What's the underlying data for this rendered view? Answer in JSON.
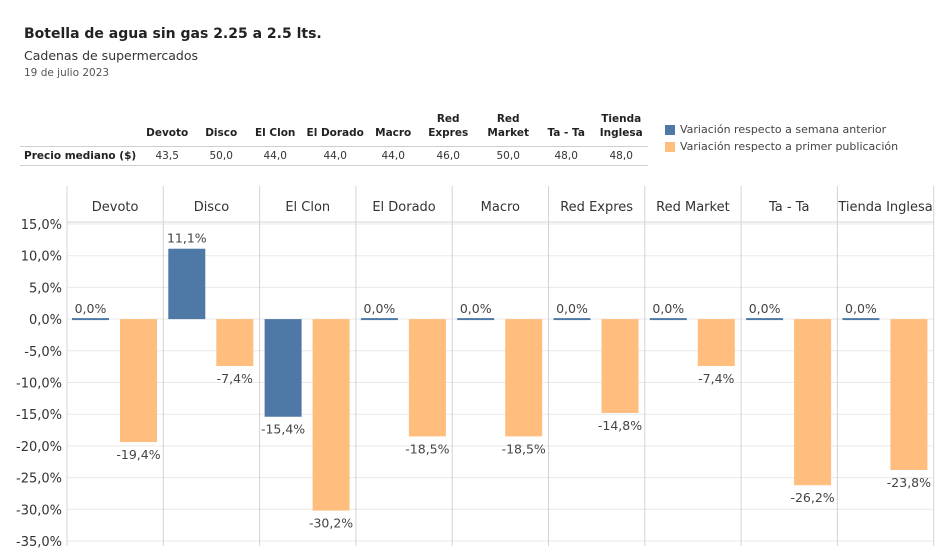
{
  "header": {
    "title": "Botella de agua sin gas 2.25 a 2.5 lts.",
    "subtitle": "Cadenas de supermercados",
    "date": "19 de julio 2023"
  },
  "price_table": {
    "row_label": "Precio mediano ($)",
    "columns": [
      {
        "name": [
          "Devoto"
        ],
        "value": "43,5"
      },
      {
        "name": [
          "Disco"
        ],
        "value": "50,0"
      },
      {
        "name": [
          "El Clon"
        ],
        "value": "44,0"
      },
      {
        "name": [
          "El Dorado"
        ],
        "value": "44,0"
      },
      {
        "name": [
          "Macro"
        ],
        "value": "44,0"
      },
      {
        "name": [
          "Red",
          "Expres"
        ],
        "value": "46,0"
      },
      {
        "name": [
          "Red",
          "Market"
        ],
        "value": "50,0"
      },
      {
        "name": [
          "Ta - Ta"
        ],
        "value": "48,0"
      },
      {
        "name": [
          "Tienda",
          "Inglesa"
        ],
        "value": "48,0"
      }
    ]
  },
  "legend": {
    "items": [
      {
        "label": "Variación respecto a semana anterior",
        "color": "#4e79a7"
      },
      {
        "label": "Variación respecto a primer publicación",
        "color": "#ffbe7d"
      }
    ]
  },
  "chart_data": {
    "type": "bar",
    "categories": [
      "Devoto",
      "Disco",
      "El Clon",
      "El Dorado",
      "Macro",
      "Red Expres",
      "Red Market",
      "Ta - Ta",
      "Tienda Inglesa"
    ],
    "series": [
      {
        "name": "Variación respecto a semana anterior",
        "color": "#4e79a7",
        "values": [
          0.0,
          11.1,
          -15.4,
          0.0,
          0.0,
          0.0,
          0.0,
          0.0,
          0.0
        ],
        "labels": [
          "0,0%",
          "11,1%",
          "-15,4%",
          "0,0%",
          "0,0%",
          "0,0%",
          "0,0%",
          "0,0%",
          "0,0%"
        ]
      },
      {
        "name": "Variación respecto a primer publicación",
        "color": "#ffbe7d",
        "values": [
          -19.4,
          -7.4,
          -30.2,
          -18.5,
          -18.5,
          -14.8,
          -7.4,
          -26.2,
          -23.8
        ],
        "labels": [
          "-19,4%",
          "-7,4%",
          "-30,2%",
          "-18,5%",
          "-18,5%",
          "-14,8%",
          "-7,4%",
          "-26,2%",
          "-23,8%"
        ]
      }
    ],
    "yticks": [
      15,
      10,
      5,
      0,
      -5,
      -10,
      -15,
      -20,
      -25,
      -30,
      -35
    ],
    "ytick_labels": [
      "15,0%",
      "10,0%",
      "5,0%",
      "0,0%",
      "-5,0%",
      "-10,0%",
      "-15,0%",
      "-20,0%",
      "-25,0%",
      "-30,0%",
      "-35,0%"
    ],
    "ylim": [
      -35,
      15
    ],
    "grid": true,
    "xlabel": "",
    "ylabel": ""
  }
}
